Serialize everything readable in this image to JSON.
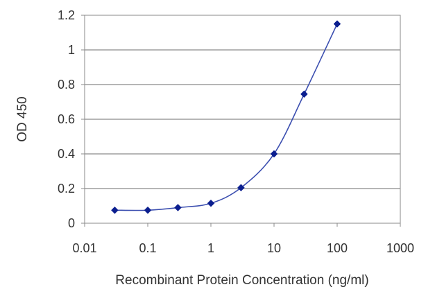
{
  "chart_data": {
    "type": "line",
    "title": "",
    "xlabel": "Recombinant Protein Concentration (ng/ml)",
    "ylabel": "OD 450",
    "x_scale": "log",
    "xlim": [
      0.01,
      1000
    ],
    "ylim": [
      0,
      1.2
    ],
    "x_ticks": [
      0.01,
      0.1,
      1,
      10,
      100,
      1000
    ],
    "x_tick_labels": [
      "0.01",
      "0.1",
      "1",
      "10",
      "100",
      "1000"
    ],
    "y_ticks": [
      0,
      0.2,
      0.4,
      0.6,
      0.8,
      1,
      1.2
    ],
    "y_tick_labels": [
      "0",
      "0.2",
      "0.4",
      "0.6",
      "0.8",
      "1",
      "1.2"
    ],
    "grid": "horizontal",
    "series": [
      {
        "color": "#3c4fb0",
        "marker_color": "#0b1e8f",
        "marker": "diamond",
        "points": [
          {
            "x": 0.03,
            "y": 0.075
          },
          {
            "x": 0.1,
            "y": 0.075
          },
          {
            "x": 0.3,
            "y": 0.09
          },
          {
            "x": 1,
            "y": 0.115
          },
          {
            "x": 3,
            "y": 0.205
          },
          {
            "x": 10,
            "y": 0.4
          },
          {
            "x": 30,
            "y": 0.745
          },
          {
            "x": 100,
            "y": 1.15
          }
        ]
      }
    ]
  }
}
